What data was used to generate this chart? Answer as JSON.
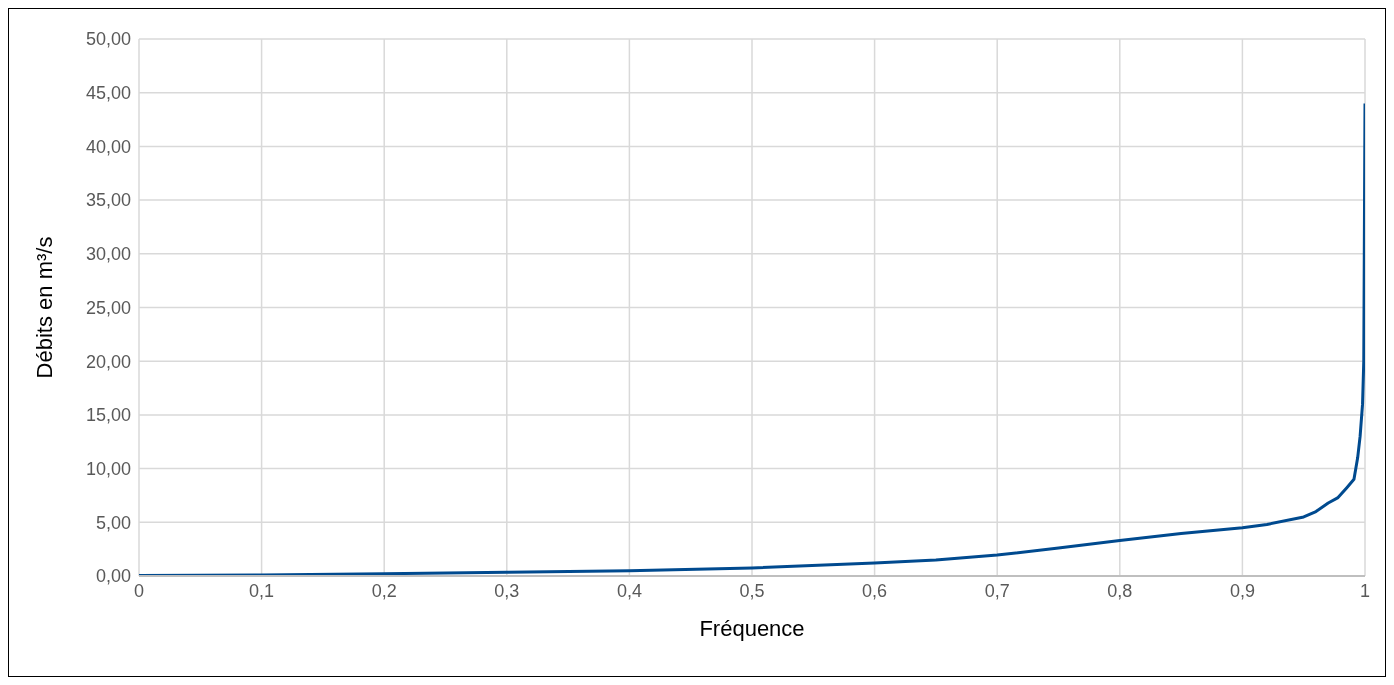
{
  "chart_data": {
    "type": "line",
    "xlabel": "Fréquence",
    "ylabel": "Débits en m³/s",
    "x": [
      0,
      0.05,
      0.1,
      0.2,
      0.3,
      0.4,
      0.5,
      0.6,
      0.65,
      0.7,
      0.75,
      0.8,
      0.85,
      0.9,
      0.92,
      0.95,
      0.96,
      0.97,
      0.978,
      0.985,
      0.991,
      0.994,
      0.996,
      0.998,
      0.999,
      1
    ],
    "series": [
      {
        "color": "#004a8f",
        "values": [
          0.05,
          0.08,
          0.1,
          0.2,
          0.35,
          0.5,
          0.75,
          1.2,
          1.5,
          1.95,
          2.6,
          3.3,
          3.95,
          4.5,
          4.8,
          5.5,
          6.0,
          6.8,
          7.3,
          8.2,
          9.0,
          11.0,
          13.0,
          16.0,
          20.0,
          44.0
        ]
      }
    ],
    "xlim": [
      0,
      1
    ],
    "ylim": [
      0,
      50
    ],
    "xticks": [
      0,
      {
        "value": 0.1,
        "label": "0,1"
      },
      {
        "value": 0.2,
        "label": "0,2"
      },
      {
        "value": 0.3,
        "label": "0,3"
      },
      {
        "value": 0.4,
        "label": "0,4"
      },
      {
        "value": 0.5,
        "label": "0,5"
      },
      {
        "value": 0.6,
        "label": "0,6"
      },
      {
        "value": 0.7,
        "label": "0,7"
      },
      {
        "value": 0.8,
        "label": "0,8"
      },
      {
        "value": 0.9,
        "label": "0,9"
      },
      1
    ],
    "yticks": [
      {
        "value": 0,
        "label": "0,00"
      },
      {
        "value": 5,
        "label": "5,00"
      },
      {
        "value": 10,
        "label": "10,00"
      },
      {
        "value": 15,
        "label": "15,00"
      },
      {
        "value": 20,
        "label": "20,00"
      },
      {
        "value": 25,
        "label": "25,00"
      },
      {
        "value": 30,
        "label": "30,00"
      },
      {
        "value": 35,
        "label": "35,00"
      },
      {
        "value": 40,
        "label": "40,00"
      },
      {
        "value": 45,
        "label": "45,00"
      },
      {
        "value": 50,
        "label": "50,00"
      }
    ],
    "grid": true,
    "marker": "none",
    "line_style": "solid"
  }
}
